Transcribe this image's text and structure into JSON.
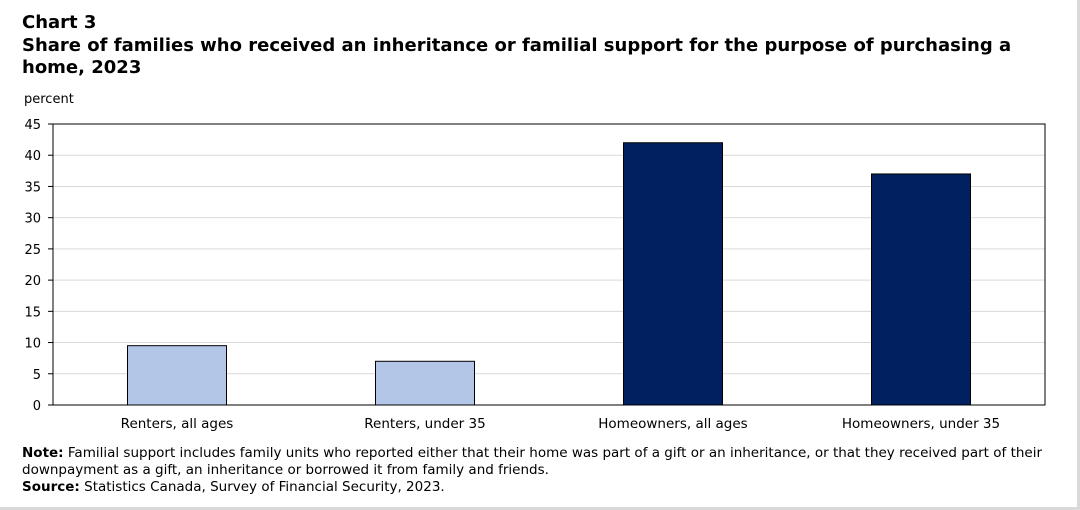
{
  "chart_number": "Chart 3",
  "chart_title": "Share of families who received an inheritance or familial support for the purpose of purchasing a home, 2023",
  "note_label": "Note:",
  "note_text": "Familial support includes family units who reported either that their home was part of a gift or an inheritance, or that they received part of their downpayment as a gift, an inheritance or borrowed it from family and friends.",
  "source_label": "Source:",
  "source_text": "Statistics Canada, Survey of Financial Security, 2023.",
  "colors": {
    "renters": "#b4c6e7",
    "homeowners": "#002060",
    "bar_outline": "#000000",
    "grid": "#d9d9d9"
  },
  "chart_data": {
    "type": "bar",
    "title": "Share of families who received an inheritance or familial support for the purpose of purchasing a home, 2023",
    "ylabel": "percent",
    "xlabel": "",
    "categories": [
      "Renters, all ages",
      "Renters, under 35",
      "Homeowners, all ages",
      "Homeowners, under 35"
    ],
    "values": [
      9.5,
      7.0,
      42.0,
      37.0
    ],
    "bar_colors": [
      "#b4c6e7",
      "#b4c6e7",
      "#002060",
      "#002060"
    ],
    "ylim": [
      0,
      45
    ],
    "yticks": [
      0,
      5,
      10,
      15,
      20,
      25,
      30,
      35,
      40,
      45
    ],
    "grid": true,
    "legend": "none"
  }
}
